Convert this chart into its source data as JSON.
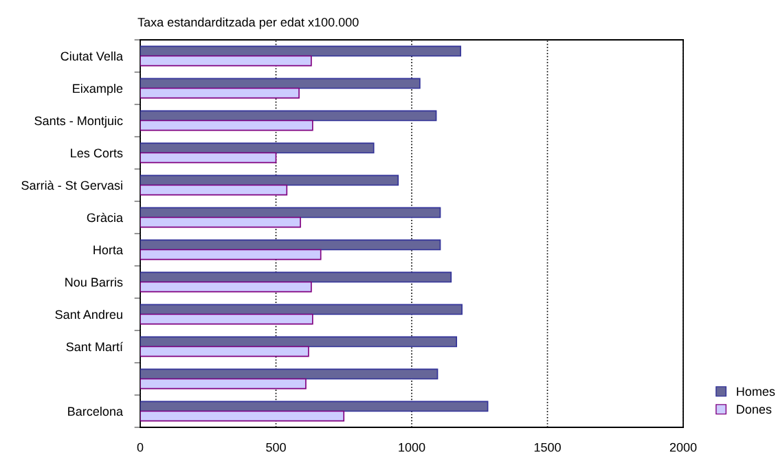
{
  "chart_data": {
    "type": "bar",
    "orientation": "horizontal",
    "title": "Taxa estandarditzada per edat x100.000",
    "categories": [
      "Ciutat Vella",
      "Eixample",
      "Sants - Montjuic",
      "Les Corts",
      "Sarrià - St Gervasi",
      "Gràcia",
      "Horta",
      "Nou Barris",
      "Sant Andreu",
      "Sant Martí",
      null,
      "Barcelona"
    ],
    "series": [
      {
        "name": "Homes",
        "color": "#666699",
        "values": [
          1180,
          1030,
          1090,
          860,
          950,
          1105,
          1105,
          1145,
          1185,
          1165,
          1095,
          1280
        ]
      },
      {
        "name": "Dones",
        "color": "#ccccff",
        "values": [
          630,
          585,
          635,
          500,
          540,
          590,
          665,
          630,
          635,
          620,
          610,
          750
        ]
      }
    ],
    "xlim": [
      0,
      2000
    ],
    "xticks": [
      0,
      500,
      1000,
      1500,
      2000
    ],
    "grid": "x",
    "line_style": "dotted",
    "legend": "bottom right"
  }
}
